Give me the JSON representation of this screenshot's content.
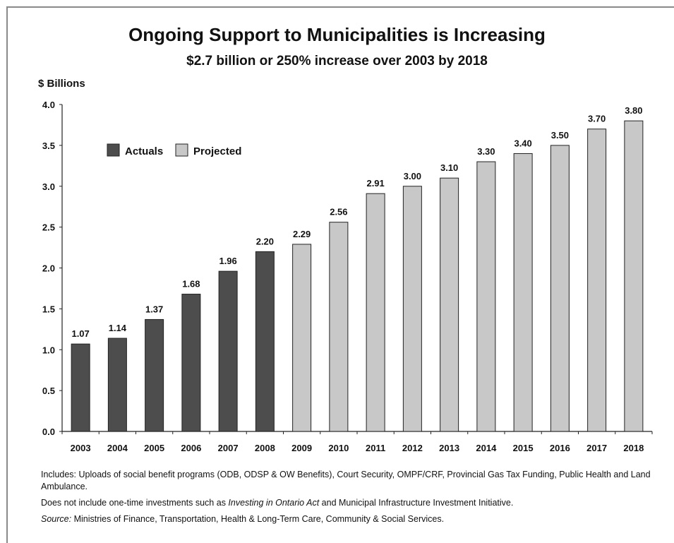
{
  "title": "Ongoing Support to Municipalities is Increasing",
  "subtitle": "$2.7 billion or 250% increase over 2003 by 2018",
  "chart_data": {
    "type": "bar",
    "title": "Ongoing Support to Municipalities is Increasing",
    "subtitle": "$2.7 billion or 250% increase over 2003 by 2018",
    "ylabel": "$ Billions",
    "xlabel": "",
    "ylim": [
      0,
      4.0
    ],
    "yticks": [
      "0.0",
      "0.5",
      "1.0",
      "1.5",
      "2.0",
      "2.5",
      "3.0",
      "3.5",
      "4.0"
    ],
    "categories": [
      "2003",
      "2004",
      "2005",
      "2006",
      "2007",
      "2008",
      "2009",
      "2010",
      "2011",
      "2012",
      "2013",
      "2014",
      "2015",
      "2016",
      "2017",
      "2018"
    ],
    "values": [
      1.07,
      1.14,
      1.37,
      1.68,
      1.96,
      2.2,
      2.29,
      2.56,
      2.91,
      3.0,
      3.1,
      3.3,
      3.4,
      3.5,
      3.7,
      3.8
    ],
    "value_labels": [
      "1.07",
      "1.14",
      "1.37",
      "1.68",
      "1.96",
      "2.20",
      "2.29",
      "2.56",
      "2.91",
      "3.00",
      "3.10",
      "3.30",
      "3.40",
      "3.50",
      "3.70",
      "3.80"
    ],
    "series_type": [
      "Actuals",
      "Actuals",
      "Actuals",
      "Actuals",
      "Actuals",
      "Actuals",
      "Projected",
      "Projected",
      "Projected",
      "Projected",
      "Projected",
      "Projected",
      "Projected",
      "Projected",
      "Projected",
      "Projected"
    ],
    "legend": [
      {
        "name": "Actuals",
        "color": "#4d4d4d"
      },
      {
        "name": "Projected",
        "color": "#c8c8c8"
      }
    ],
    "legend_position": "top-left",
    "grid": false
  },
  "notes": {
    "includes": "Includes: Uploads of social benefit programs (ODB, ODSP & OW Benefits), Court Security, OMPF/CRF, Provincial Gas Tax Funding, Public Health and Land Ambulance.",
    "excludes_prefix": "Does not include one-time investments such as ",
    "excludes_italic": "Investing in Ontario Act",
    "excludes_suffix": " and Municipal Infrastructure Investment Initiative.",
    "source_label": "Source:",
    "source_text": " Ministries of Finance, Transportation, Health & Long-Term Care, Community & Social Services."
  }
}
